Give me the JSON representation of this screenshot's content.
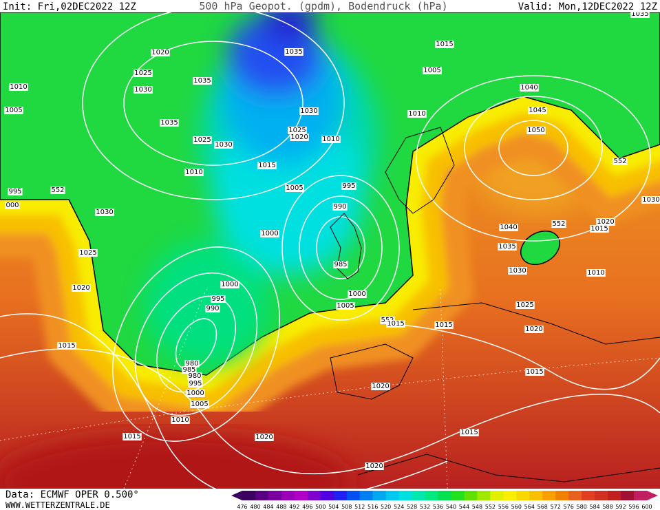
{
  "header": {
    "init": "Init: Fri,02DEC2022 12Z",
    "title": "500 hPa Geopot. (gpdm), Bodendruck (hPa)",
    "valid": "Valid: Mon,12DEC2022 12Z"
  },
  "footer": {
    "source": "Data: ECMWF OPER 0.500°",
    "website": "WWW.WETTERZENTRALE.DE"
  },
  "colorbar": {
    "labels": [
      476,
      480,
      484,
      488,
      492,
      496,
      500,
      504,
      508,
      512,
      516,
      520,
      524,
      528,
      532,
      536,
      540,
      544,
      548,
      552,
      556,
      560,
      564,
      568,
      572,
      576,
      580,
      584,
      588,
      592,
      596,
      600
    ],
    "colors": [
      "#3c0060",
      "#5a0080",
      "#7a00a0",
      "#9a00b8",
      "#b000c8",
      "#8000d0",
      "#5000e0",
      "#2020f0",
      "#0050f0",
      "#0080f0",
      "#00a8f0",
      "#00c8f0",
      "#00e0e0",
      "#00e8b0",
      "#00e880",
      "#00e050",
      "#20e020",
      "#60e000",
      "#a0e800",
      "#e0f000",
      "#f8f000",
      "#f8d800",
      "#f8c000",
      "#f8a000",
      "#f08000",
      "#e86020",
      "#e04020",
      "#d03020",
      "#c02020",
      "#a01030",
      "#c02060"
    ]
  },
  "isobar_labels": [
    "1035",
    "1020",
    "1035",
    "1015",
    "1025",
    "1035",
    "1005",
    "1010",
    "1030",
    "1040",
    "1005",
    "1030",
    "1010",
    "1045",
    "1035",
    "1025",
    "1020",
    "1010",
    "1050",
    "1025",
    "1030",
    "1015",
    "552",
    "1010",
    "1005",
    "995",
    "995",
    "552",
    "000",
    "1030",
    "990",
    "1030",
    "1040",
    "552",
    "1020",
    "1015",
    "1000",
    "1035",
    "1025",
    "985",
    "1030",
    "1010",
    "1000",
    "1020",
    "1000",
    "995",
    "990",
    "1005",
    "1025",
    "552",
    "1015",
    "1015",
    "1020",
    "1015",
    "980",
    "985",
    "980",
    "995",
    "1000",
    "1020",
    "1005",
    "1015",
    "1010",
    "1015",
    "1015",
    "1020",
    "1020"
  ]
}
